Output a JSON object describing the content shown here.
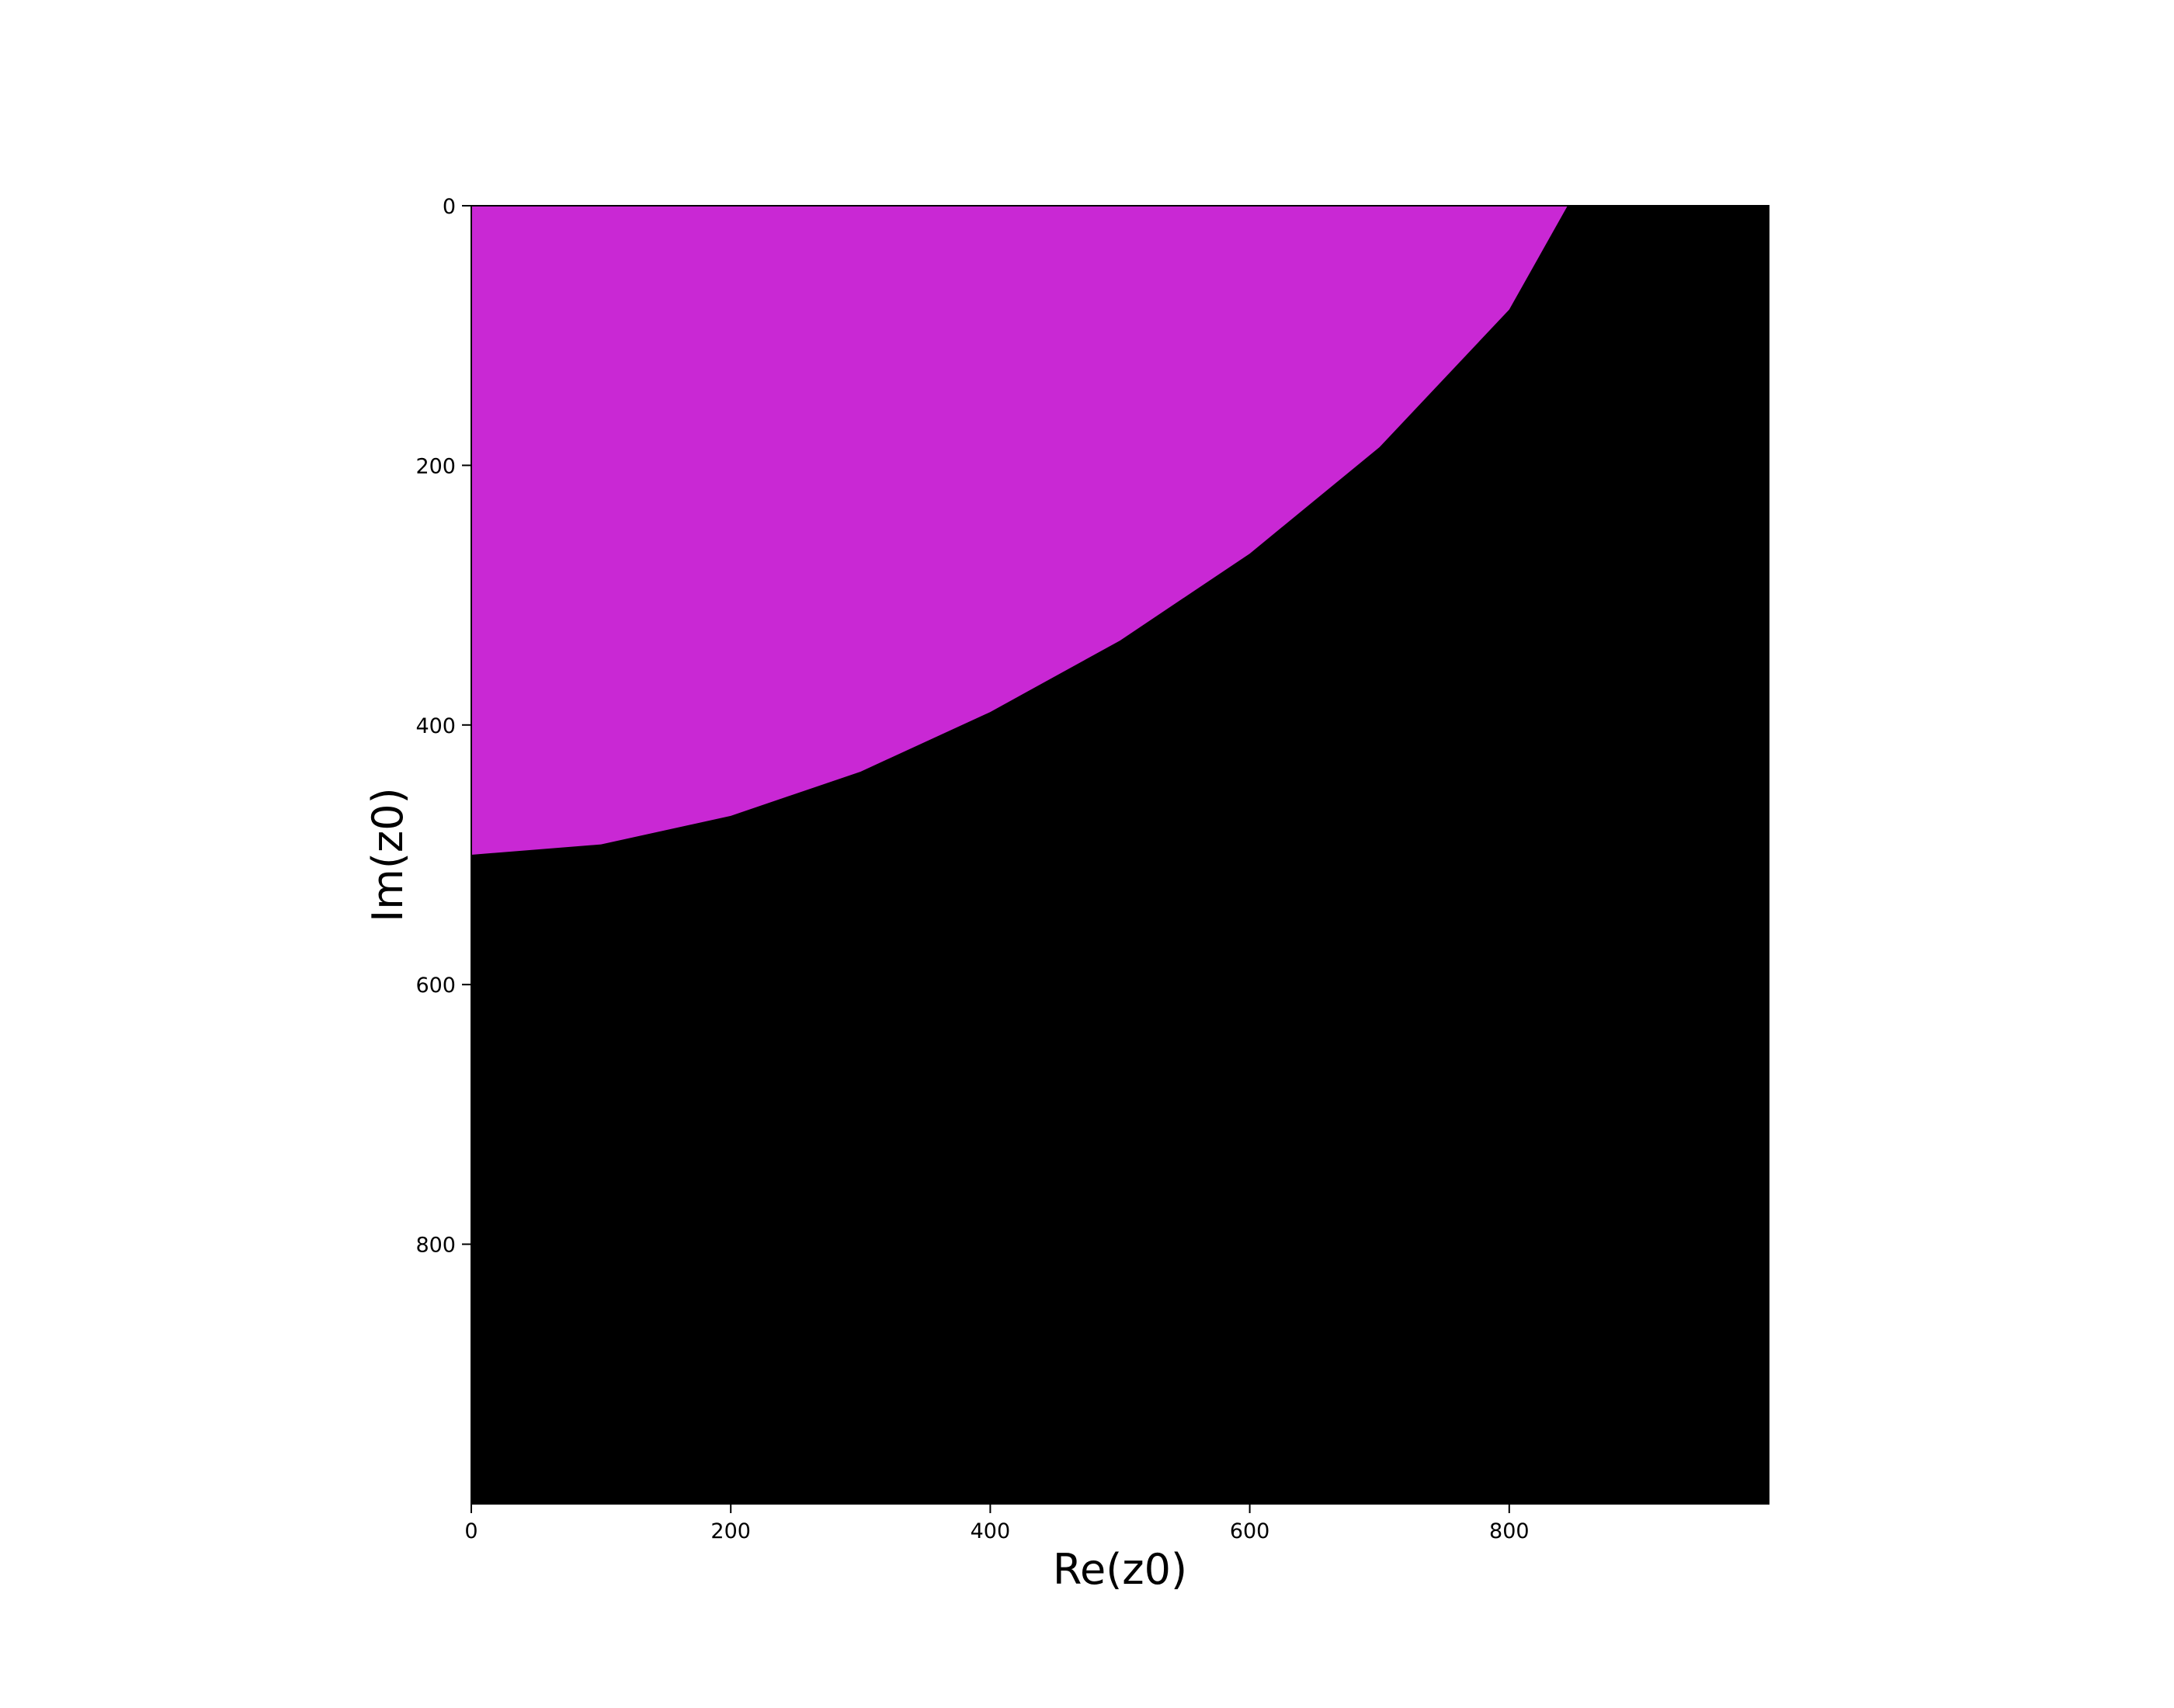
{
  "chart_data": {
    "type": "heatmap",
    "title": "",
    "xlabel": "Re(z0)",
    "ylabel": "Im(z0)",
    "xlim": [
      0,
      1000
    ],
    "ylim": [
      1000,
      0
    ],
    "y_axis_inverted": true,
    "grid": false,
    "x_ticks": [
      0,
      200,
      400,
      600,
      800
    ],
    "y_ticks": [
      0,
      200,
      400,
      600,
      800
    ],
    "colors": {
      "inside_region": "#c928d4",
      "outside_region": "#000000"
    },
    "region": {
      "description_from_axes": "magenta region in the top-left corner bounded by a curve",
      "boundary_points": [
        {
          "x": 0,
          "y": 500
        },
        {
          "x": 100,
          "y": 492
        },
        {
          "x": 200,
          "y": 470
        },
        {
          "x": 300,
          "y": 436
        },
        {
          "x": 400,
          "y": 390
        },
        {
          "x": 500,
          "y": 335
        },
        {
          "x": 600,
          "y": 268
        },
        {
          "x": 700,
          "y": 186
        },
        {
          "x": 800,
          "y": 80
        },
        {
          "x": 845,
          "y": 0
        }
      ]
    }
  }
}
